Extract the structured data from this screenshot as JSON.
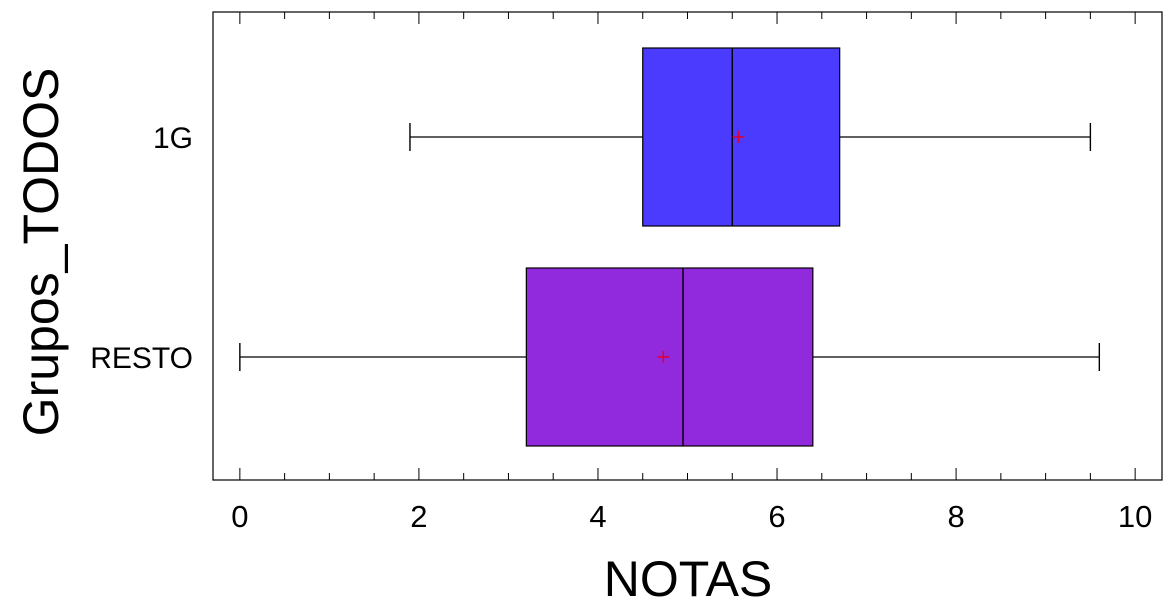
{
  "chart_data": {
    "type": "boxplot",
    "orientation": "horizontal",
    "xlabel": "NOTAS",
    "ylabel": "Grupos_TODOS",
    "xlim": [
      -0.3,
      10.3
    ],
    "xticks": [
      0,
      2,
      4,
      6,
      8,
      10
    ],
    "xtick_labels": [
      "0",
      "2",
      "4",
      "6",
      "8",
      "10"
    ],
    "minor_tick_step": 0.5,
    "grid": false,
    "legend": "none",
    "categories": [
      "1G",
      "RESTO"
    ],
    "boxes": [
      {
        "category": "1G",
        "whisker_low": 1.9,
        "q1": 4.5,
        "median": 5.5,
        "q3": 6.7,
        "whisker_high": 9.5,
        "mean": 5.57,
        "color": "#4B3BFF"
      },
      {
        "category": "RESTO",
        "whisker_low": 0.0,
        "q1": 3.2,
        "median": 4.95,
        "q3": 6.4,
        "whisker_high": 9.6,
        "mean": 4.73,
        "color": "#9129DC"
      }
    ],
    "mean_marker_color": "#E0002A"
  }
}
